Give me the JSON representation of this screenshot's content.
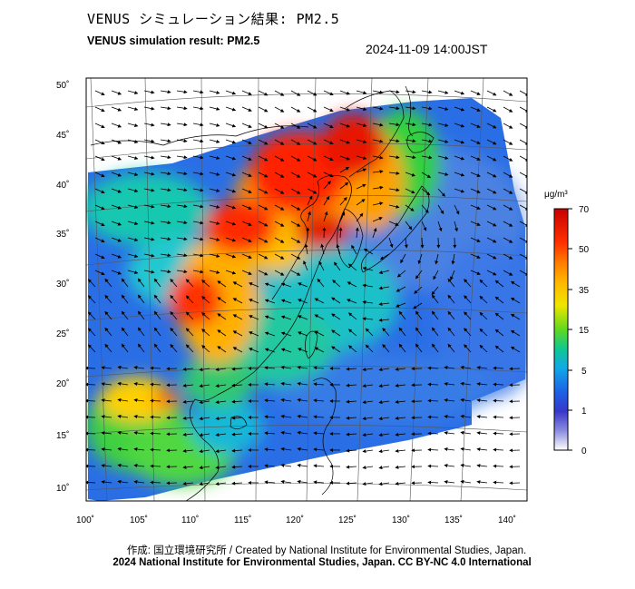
{
  "title_jp": "VENUS シミュレーション結果: PM2.5",
  "title_en": "VENUS simulation result: PM2.5",
  "datetime": "2024-11-09 14:00JST",
  "credit_line1": "作成: 国立環境研究所 / Created by National Institute for Environmental Studies, Japan.",
  "credit_line2": "2024 National Institute for Environmental Studies, Japan. CC BY-NC 4.0 International",
  "map": {
    "lon_labels": [
      "100˚",
      "105˚",
      "110˚",
      "115˚",
      "120˚",
      "125˚",
      "130˚",
      "135˚",
      "140˚"
    ],
    "lat_labels": [
      "50˚",
      "45˚",
      "40˚",
      "35˚",
      "30˚",
      "25˚",
      "20˚",
      "15˚",
      "10˚"
    ]
  },
  "colorbar": {
    "unit": "μg/m³",
    "tick_labels": [
      "70",
      "50",
      "35",
      "15",
      "5",
      "1",
      "0"
    ],
    "colors": [
      "#d00000",
      "#ff3a00",
      "#ff8c00",
      "#ffd200",
      "#a8e600",
      "#28d028",
      "#10c8a0",
      "#10a8e8",
      "#2060e8",
      "#4040c8",
      "#9090e0",
      "#ffffff"
    ]
  }
}
